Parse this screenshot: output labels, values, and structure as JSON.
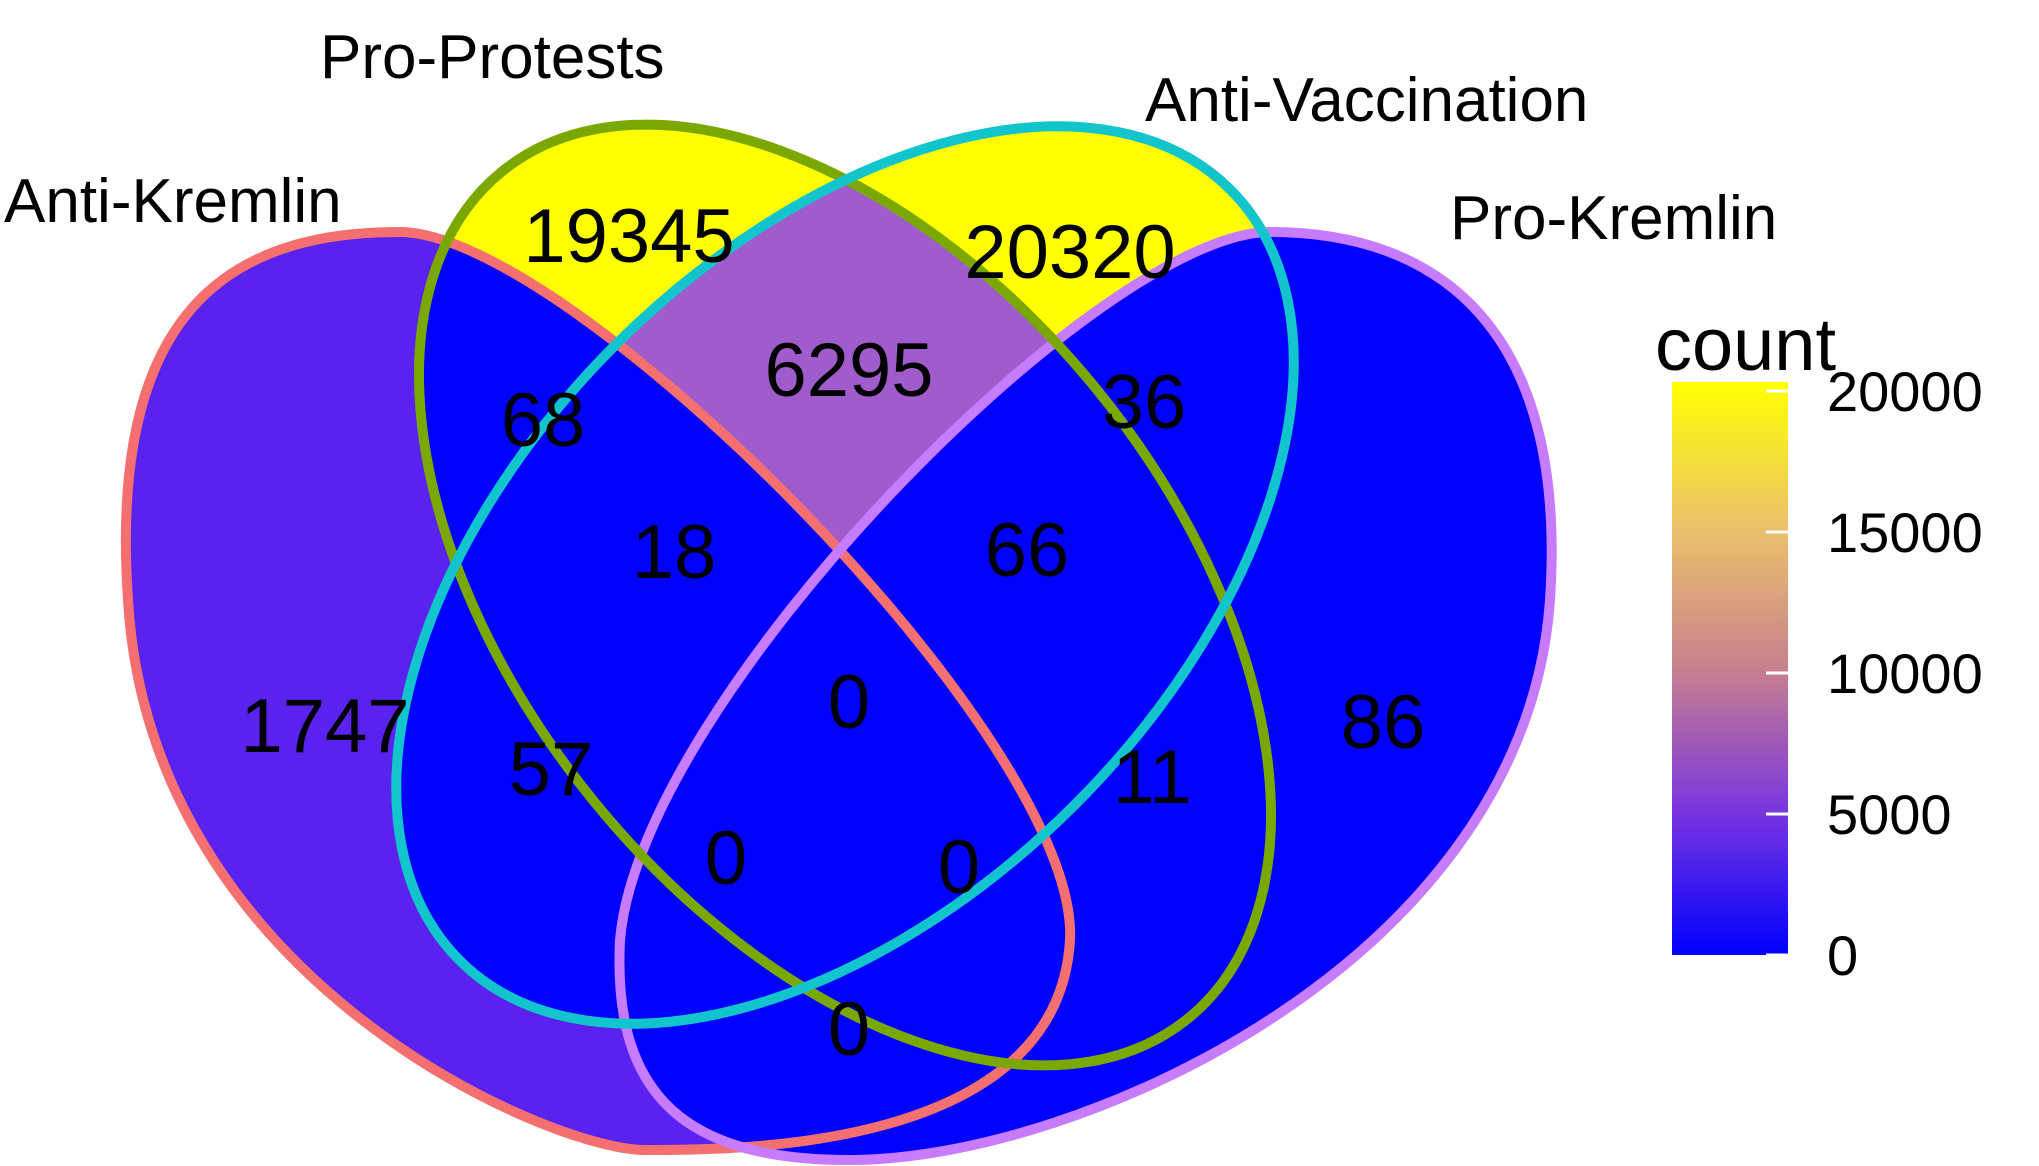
{
  "chart_data": {
    "type": "venn",
    "sets": [
      {
        "id": "A",
        "name": "Anti-Kremlin",
        "outline_color": "#f47070"
      },
      {
        "id": "B",
        "name": "Pro-Protests",
        "outline_color": "#7ba800"
      },
      {
        "id": "C",
        "name": "Anti-Vaccination",
        "outline_color": "#12c4cc"
      },
      {
        "id": "D",
        "name": "Pro-Kremlin",
        "outline_color": "#c77cff"
      }
    ],
    "regions": [
      {
        "sets": [
          "A"
        ],
        "count": 1747,
        "label": "1747"
      },
      {
        "sets": [
          "B"
        ],
        "count": 19345,
        "label": "19345"
      },
      {
        "sets": [
          "C"
        ],
        "count": 20320,
        "label": "20320"
      },
      {
        "sets": [
          "D"
        ],
        "count": 86,
        "label": "86"
      },
      {
        "sets": [
          "A",
          "B"
        ],
        "count": 68,
        "label": "68"
      },
      {
        "sets": [
          "B",
          "C"
        ],
        "count": 6295,
        "label": "6295"
      },
      {
        "sets": [
          "C",
          "D"
        ],
        "count": 36,
        "label": "36"
      },
      {
        "sets": [
          "A",
          "B",
          "C"
        ],
        "count": 18,
        "label": "18"
      },
      {
        "sets": [
          "B",
          "C",
          "D"
        ],
        "count": 66,
        "label": "66"
      },
      {
        "sets": [
          "A",
          "B",
          "C",
          "D"
        ],
        "count": 0,
        "label": "0"
      },
      {
        "sets": [
          "A",
          "C"
        ],
        "count": 57,
        "label": "57"
      },
      {
        "sets": [
          "B",
          "D"
        ],
        "count": 11,
        "label": "11"
      },
      {
        "sets": [
          "A",
          "C",
          "D"
        ],
        "count": 0,
        "label": "0"
      },
      {
        "sets": [
          "A",
          "B",
          "D"
        ],
        "count": 0,
        "label": "0"
      },
      {
        "sets": [
          "A",
          "D"
        ],
        "count": 0,
        "label": "0"
      }
    ],
    "legend": {
      "title": "count",
      "ticks": [
        20000,
        15000,
        10000,
        5000,
        0
      ],
      "tick_labels": [
        "20000",
        "15000",
        "10000",
        "5000",
        "0"
      ],
      "range": [
        0,
        20320
      ],
      "color_low": "#0000ff",
      "color_mid": "#c8808e",
      "color_high": "#ffff00"
    }
  }
}
